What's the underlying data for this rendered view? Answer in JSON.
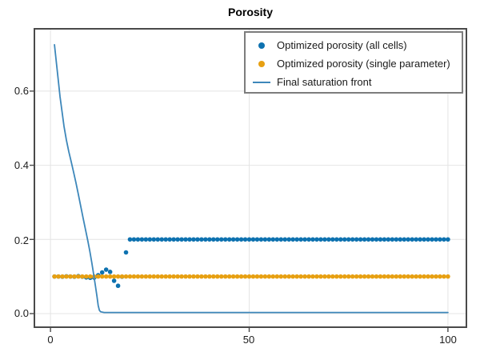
{
  "chart_data": {
    "type": "scatter",
    "title": "Porosity",
    "xlabel": "",
    "ylabel": "",
    "xlim": [
      -4.05,
      104.65
    ],
    "ylim": [
      -0.0367,
      0.768
    ],
    "xticks": [
      0,
      50,
      100
    ],
    "xtick_labels": [
      "0",
      "50",
      "100"
    ],
    "yticks": [
      0.0,
      0.2,
      0.4,
      0.6
    ],
    "ytick_labels": [
      "0.0",
      "0.2",
      "0.4",
      "0.6"
    ],
    "grid": true,
    "legend_position": "top-right-inside",
    "frame_color": "#4a4a4a",
    "grid_color": "#e4e4e4",
    "legend": [
      {
        "label": "Optimized porosity (all cells)",
        "marker": "circle",
        "color": "#0e72b0"
      },
      {
        "label": "Optimized porosity (single parameter)",
        "marker": "circle",
        "color": "#e7a012"
      },
      {
        "label": "Final saturation front",
        "marker": "line",
        "color": "#3d87ba"
      }
    ],
    "series": [
      {
        "name": "Optimized porosity (all cells)",
        "type": "scatter",
        "color": "#0e72b0",
        "marker_size": 2.8,
        "x_start": 1,
        "x_step": 1,
        "y": [
          0.1,
          0.1,
          0.0995,
          0.1005,
          0.1,
          0.0995,
          0.101,
          0.0995,
          0.0975,
          0.0965,
          0.097,
          0.1035,
          0.111,
          0.1185,
          0.1125,
          0.0885,
          0.075,
          0.0995,
          0.165,
          0.2,
          0.2,
          0.2,
          0.2,
          0.2,
          0.2,
          0.2,
          0.2,
          0.2,
          0.2,
          0.2,
          0.2,
          0.2,
          0.2,
          0.2,
          0.2,
          0.2,
          0.2,
          0.2,
          0.2,
          0.2,
          0.2,
          0.2,
          0.2,
          0.2,
          0.2,
          0.2,
          0.2,
          0.2,
          0.2,
          0.2,
          0.2,
          0.2,
          0.2,
          0.2,
          0.2,
          0.2,
          0.2,
          0.2,
          0.2,
          0.2,
          0.2,
          0.2,
          0.2,
          0.2,
          0.2,
          0.2,
          0.2,
          0.2,
          0.2,
          0.2,
          0.2,
          0.2,
          0.2,
          0.2,
          0.2,
          0.2,
          0.2,
          0.2,
          0.2,
          0.2,
          0.2,
          0.2,
          0.2,
          0.2,
          0.2,
          0.2,
          0.2,
          0.2,
          0.2,
          0.2,
          0.2,
          0.2,
          0.2,
          0.2,
          0.2,
          0.2,
          0.2,
          0.2,
          0.2,
          0.2
        ]
      },
      {
        "name": "Optimized porosity (single parameter)",
        "type": "scatter",
        "color": "#e7a012",
        "marker_size": 2.8,
        "x_start": 1,
        "x_step": 1,
        "y": [
          0.1,
          0.1,
          0.1,
          0.1,
          0.1,
          0.1,
          0.1,
          0.1,
          0.1,
          0.1,
          0.1,
          0.1,
          0.1,
          0.1,
          0.1,
          0.1,
          0.1,
          0.1,
          0.1,
          0.1,
          0.1,
          0.1,
          0.1,
          0.1,
          0.1,
          0.1,
          0.1,
          0.1,
          0.1,
          0.1,
          0.1,
          0.1,
          0.1,
          0.1,
          0.1,
          0.1,
          0.1,
          0.1,
          0.1,
          0.1,
          0.1,
          0.1,
          0.1,
          0.1,
          0.1,
          0.1,
          0.1,
          0.1,
          0.1,
          0.1,
          0.1,
          0.1,
          0.1,
          0.1,
          0.1,
          0.1,
          0.1,
          0.1,
          0.1,
          0.1,
          0.1,
          0.1,
          0.1,
          0.1,
          0.1,
          0.1,
          0.1,
          0.1,
          0.1,
          0.1,
          0.1,
          0.1,
          0.1,
          0.1,
          0.1,
          0.1,
          0.1,
          0.1,
          0.1,
          0.1,
          0.1,
          0.1,
          0.1,
          0.1,
          0.1,
          0.1,
          0.1,
          0.1,
          0.1,
          0.1,
          0.1,
          0.1,
          0.1,
          0.1,
          0.1,
          0.1,
          0.1,
          0.1,
          0.1,
          0.1
        ]
      },
      {
        "name": "Final saturation front",
        "type": "line",
        "color": "#3d87ba",
        "line_width": 1.8,
        "x": [
          1.0,
          1.3,
          1.6,
          2.0,
          2.4,
          2.9,
          3.4,
          4.0,
          4.6,
          5.2,
          5.8,
          6.4,
          7.0,
          7.6,
          8.2,
          8.8,
          9.4,
          9.9,
          10.4,
          10.9,
          11.3,
          11.7,
          12.0,
          12.3,
          12.6,
          13.0,
          13.5,
          14.5,
          17,
          25,
          50,
          100
        ],
        "y": [
          0.725,
          0.695,
          0.665,
          0.625,
          0.585,
          0.545,
          0.505,
          0.468,
          0.437,
          0.41,
          0.382,
          0.353,
          0.322,
          0.29,
          0.258,
          0.227,
          0.196,
          0.168,
          0.137,
          0.103,
          0.075,
          0.046,
          0.022,
          0.009,
          0.005,
          0.004,
          0.003,
          0.003,
          0.003,
          0.003,
          0.003,
          0.003
        ]
      }
    ]
  }
}
